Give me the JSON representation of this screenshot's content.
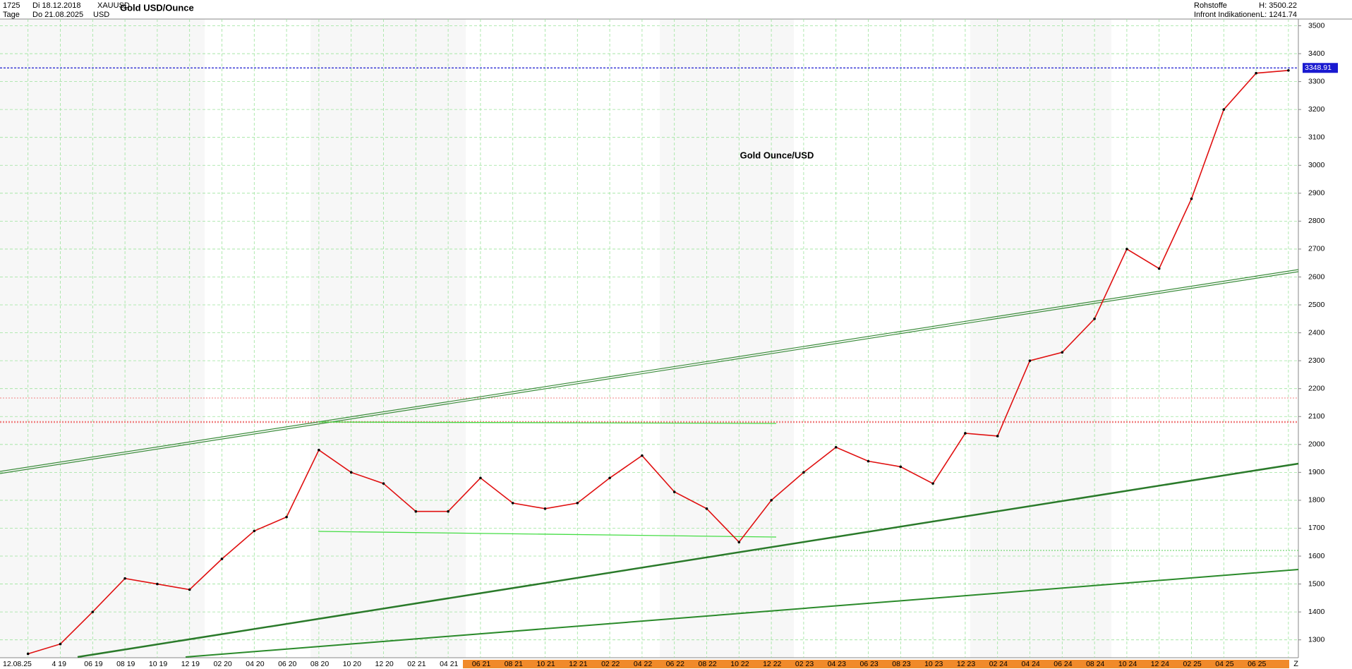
{
  "chart_data": {
    "type": "line",
    "title": "Gold USD/Ounce",
    "annotation": "Gold Ounce/USD",
    "header": {
      "count": "1725",
      "from": "Di 18.12.2018",
      "symbol": "XAUUSD",
      "period": "Tage",
      "to": "Do 21.08.2025",
      "currency": "USD",
      "group": "Rohstoffe",
      "high": "H: 3500.22",
      "source": "Infront Indikationen",
      "low": "L: 1241.74",
      "corner": "Z"
    },
    "categories": [
      "12.08.25",
      "4 19",
      "06 19",
      "08 19",
      "10 19",
      "12 19",
      "02 20",
      "04 20",
      "06 20",
      "08 20",
      "10 20",
      "12 20",
      "02 21",
      "04 21",
      "06 21",
      "08 21",
      "10 21",
      "12 21",
      "02 22",
      "04 22",
      "06 22",
      "08 22",
      "10 22",
      "12 22",
      "02 23",
      "04 23",
      "06 23",
      "08 23",
      "10 23",
      "12 23",
      "02 24",
      "04 24",
      "06 24",
      "08 24",
      "10 24",
      "12 24",
      "02 25",
      "04 25",
      "06 25",
      null
    ],
    "series": [
      {
        "name": "XAUUSD",
        "color": "#e01010",
        "values": [
          1250,
          1285,
          1400,
          1520,
          1500,
          1480,
          1590,
          1690,
          1740,
          1980,
          1900,
          1860,
          1760,
          1760,
          1880,
          1790,
          1770,
          1790,
          1880,
          1960,
          1830,
          1770,
          1650,
          1800,
          1900,
          1990,
          1940,
          1920,
          1860,
          2040,
          2030,
          2300,
          2330,
          2450,
          2700,
          2630,
          2880,
          3200,
          3330,
          3340
        ]
      }
    ],
    "current_price": 3348.91,
    "ylim": [
      1236,
      3524
    ],
    "yticks": [
      1300,
      1400,
      1500,
      1600,
      1700,
      1800,
      1900,
      2000,
      2100,
      2200,
      2300,
      2400,
      2500,
      2600,
      2700,
      2800,
      2900,
      3000,
      3100,
      3200,
      3300,
      3400,
      3500
    ],
    "grid": true
  }
}
